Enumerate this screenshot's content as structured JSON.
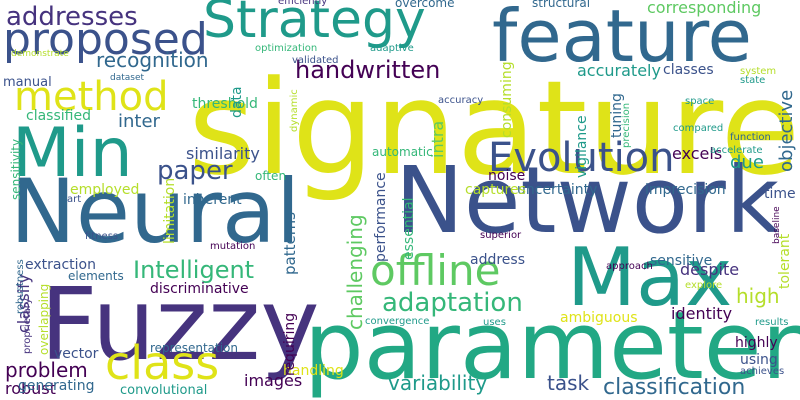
{
  "word_cloud": {
    "words": [
      {
        "text": "signature",
        "color": "#dfe318"
      },
      {
        "text": "Neural",
        "color": "#31688e"
      },
      {
        "text": "Network",
        "color": "#3b528b"
      },
      {
        "text": "parameter",
        "color": "#22a884"
      },
      {
        "text": "Fuzzy",
        "color": "#46337e"
      },
      {
        "text": "feature",
        "color": "#31688e"
      },
      {
        "text": "Max",
        "color": "#1f9a8a"
      },
      {
        "text": "Min",
        "color": "#1f9a8a"
      },
      {
        "text": "Strategy",
        "color": "#1f9a8a"
      },
      {
        "text": "proposed",
        "color": "#3b528b"
      },
      {
        "text": "method",
        "color": "#dfe318"
      },
      {
        "text": "Evolution",
        "color": "#3b528b"
      },
      {
        "text": "offline",
        "color": "#5ec962"
      },
      {
        "text": "class",
        "color": "#dfe318"
      },
      {
        "text": "addresses",
        "color": "#46337e"
      },
      {
        "text": "handwritten",
        "color": "#440154"
      },
      {
        "text": "recognition",
        "color": "#31688e"
      },
      {
        "text": "Intelligent",
        "color": "#35b779"
      },
      {
        "text": "adaptation",
        "color": "#35b779"
      },
      {
        "text": "paper",
        "color": "#3b528b"
      },
      {
        "text": "classification",
        "color": "#31688e"
      },
      {
        "text": "challenging",
        "color": "#5ec962"
      },
      {
        "text": "problem",
        "color": "#440154"
      },
      {
        "text": "variability",
        "color": "#1f9a8a"
      },
      {
        "text": "task",
        "color": "#3b528b"
      },
      {
        "text": "similarity",
        "color": "#3b528b"
      },
      {
        "text": "corresponding",
        "color": "#5ec962"
      },
      {
        "text": "accurately",
        "color": "#1f9a8a"
      },
      {
        "text": "intra",
        "color": "#5ec962"
      },
      {
        "text": "due",
        "color": "#1f9a8a"
      },
      {
        "text": "objective",
        "color": "#31688e"
      },
      {
        "text": "inter",
        "color": "#31688e"
      },
      {
        "text": "high",
        "color": "#b5de2b"
      },
      {
        "text": "identity",
        "color": "#440154"
      },
      {
        "text": "despite",
        "color": "#46337e"
      },
      {
        "text": "images",
        "color": "#440154"
      },
      {
        "text": "classes",
        "color": "#3b528b"
      },
      {
        "text": "classify",
        "color": "#46337e"
      },
      {
        "text": "uncertainty",
        "color": "#31688e"
      },
      {
        "text": "imprecision",
        "color": "#31688e"
      },
      {
        "text": "inherent",
        "color": "#31688e"
      },
      {
        "text": "captures",
        "color": "#b5de2b"
      },
      {
        "text": "Intelligent",
        "color": "#35b779"
      },
      {
        "text": "overcome",
        "color": "#31688e"
      },
      {
        "text": "structural",
        "color": "#31688e"
      },
      {
        "text": "efficiently",
        "color": "#46337e"
      },
      {
        "text": "optimization",
        "color": "#35b779"
      },
      {
        "text": "adaptive",
        "color": "#1f9a8a"
      },
      {
        "text": "validated",
        "color": "#3b528b"
      },
      {
        "text": "demonstrate",
        "color": "#b5de2b"
      },
      {
        "text": "dataset",
        "color": "#31688e"
      },
      {
        "text": "manual",
        "color": "#3b528b"
      },
      {
        "text": "threshold",
        "color": "#35b779"
      },
      {
        "text": "robust",
        "color": "#440154"
      },
      {
        "text": "classified",
        "color": "#35b779"
      },
      {
        "text": "data",
        "color": "#1f9a8a"
      },
      {
        "text": "sensitivity",
        "color": "#35b779"
      },
      {
        "text": "art",
        "color": "#3b528b"
      },
      {
        "text": "employed",
        "color": "#b5de2b"
      },
      {
        "text": "limitation",
        "color": "#b5de2b"
      },
      {
        "text": "often",
        "color": "#35b779"
      },
      {
        "text": "fitness",
        "color": "#3b528b"
      },
      {
        "text": "mutation",
        "color": "#440154"
      },
      {
        "text": "patterns",
        "color": "#31688e"
      },
      {
        "text": "extraction",
        "color": "#3b528b"
      },
      {
        "text": "elements",
        "color": "#31688e"
      },
      {
        "text": "overlapping",
        "color": "#b5de2b"
      },
      {
        "text": "discriminative",
        "color": "#440154"
      },
      {
        "text": "vector",
        "color": "#3b528b"
      },
      {
        "text": "representation",
        "color": "#31688e"
      },
      {
        "text": "handling",
        "color": "#dfe318"
      },
      {
        "text": "requiring",
        "color": "#440154"
      },
      {
        "text": "generating",
        "color": "#31688e"
      },
      {
        "text": "convolutional",
        "color": "#1f9a8a"
      },
      {
        "text": "address",
        "color": "#3b528b"
      },
      {
        "text": "sensitive",
        "color": "#31688e"
      },
      {
        "text": "tolerant",
        "color": "#b5de2b"
      },
      {
        "text": "ambiguous",
        "color": "#dfe318"
      },
      {
        "text": "highly",
        "color": "#440154"
      },
      {
        "text": "using",
        "color": "#3b528b"
      },
      {
        "text": "achieves",
        "color": "#3b528b"
      },
      {
        "text": "results",
        "color": "#1f9a8a"
      },
      {
        "text": "uses",
        "color": "#1f9a8a"
      },
      {
        "text": "convergence",
        "color": "#1f9a8a"
      },
      {
        "text": "approach",
        "color": "#440154"
      },
      {
        "text": "explore",
        "color": "#b5de2b"
      },
      {
        "text": "function",
        "color": "#31688e"
      },
      {
        "text": "superior",
        "color": "#440154"
      },
      {
        "text": "baseline",
        "color": "#440154"
      },
      {
        "text": "time",
        "color": "#3b528b"
      },
      {
        "text": "excels",
        "color": "#440154"
      },
      {
        "text": "automatic",
        "color": "#35b779"
      },
      {
        "text": "noise",
        "color": "#440154"
      },
      {
        "text": "vigilance",
        "color": "#1f9a8a"
      },
      {
        "text": "tuning",
        "color": "#31688e"
      },
      {
        "text": "precision",
        "color": "#35b779"
      },
      {
        "text": "accuracy",
        "color": "#3b528b"
      },
      {
        "text": "dynamic",
        "color": "#b5de2b"
      },
      {
        "text": "consuming",
        "color": "#b5de2b"
      },
      {
        "text": "performance",
        "color": "#3b528b"
      },
      {
        "text": "essential",
        "color": "#35b779"
      },
      {
        "text": "compared",
        "color": "#1f9a8a"
      },
      {
        "text": "accelerate",
        "color": "#1f9a8a"
      },
      {
        "text": "space",
        "color": "#1f9a8a"
      },
      {
        "text": "state",
        "color": "#1f9a8a"
      },
      {
        "text": "system",
        "color": "#b5de2b"
      },
      {
        "text": "robustness",
        "color": "#31688e"
      },
      {
        "text": "proprietary",
        "color": "#46337e"
      }
    ]
  }
}
